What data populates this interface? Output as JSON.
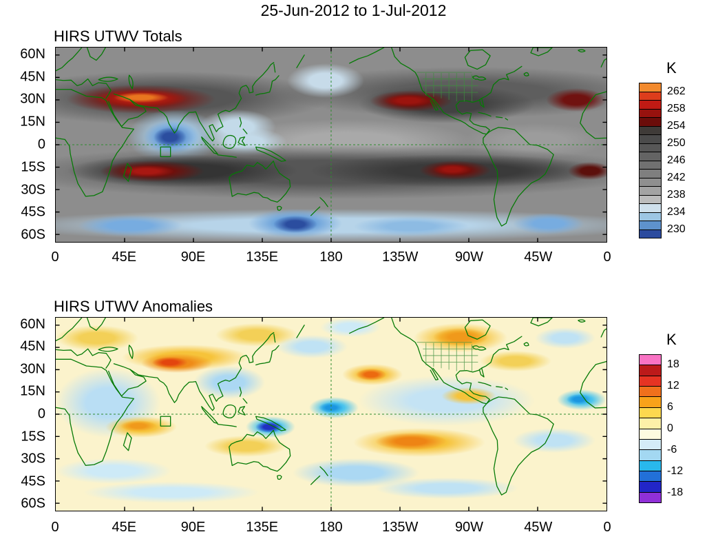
{
  "title": "25-Jun-2012 to 1-Jul-2012",
  "axes": {
    "lat_labels": [
      "60N",
      "45N",
      "30N",
      "15N",
      "0",
      "15S",
      "30S",
      "45S",
      "60S"
    ],
    "lon_labels": [
      "0",
      "45E",
      "90E",
      "135E",
      "180",
      "135W",
      "90W",
      "45W",
      "0"
    ]
  },
  "panels": [
    {
      "title": "HIRS UTWV Totals",
      "colorbar": {
        "unit": "K",
        "tick_labels": [
          "262",
          "258",
          "254",
          "250",
          "246",
          "242",
          "238",
          "234",
          "230"
        ],
        "colors": [
          "#f28a2e",
          "#dd3d1c",
          "#c01a14",
          "#97120e",
          "#6b0d0a",
          "#3f3b38",
          "#4b4b4b",
          "#575757",
          "#646464",
          "#717171",
          "#7f7f7f",
          "#8f8f8f",
          "#a3a3a3",
          "#bcbcbc",
          "#cfe0ec",
          "#9dc6e4",
          "#5e92cc",
          "#2c4b9e"
        ]
      }
    },
    {
      "title": "HIRS UTWV Anomalies",
      "colorbar": {
        "unit": "K",
        "tick_labels": [
          "18",
          "12",
          "6",
          "0",
          "-6",
          "-12",
          "-18"
        ],
        "colors": [
          "#f973c4",
          "#bc1a1a",
          "#e63323",
          "#f0701c",
          "#f9a21a",
          "#fcd84f",
          "#fdf0a8",
          "#fdfbe0",
          "#d4ecf7",
          "#a3d8f2",
          "#29b8ec",
          "#2270d8",
          "#2226c8",
          "#9030d8"
        ]
      }
    }
  ],
  "chart_data": [
    {
      "type": "heatmap",
      "title": "HIRS UTWV Totals",
      "period": "25-Jun-2012 to 1-Jul-2012",
      "units": "K",
      "x_ticks": [
        "0",
        "45E",
        "90E",
        "135E",
        "180",
        "135W",
        "90W",
        "45W",
        "0"
      ],
      "y_ticks": [
        "60N",
        "45N",
        "30N",
        "15N",
        "0",
        "15S",
        "30S",
        "45S",
        "60S"
      ],
      "scale_ticks_K": [
        262,
        258,
        254,
        250,
        246,
        242,
        238,
        234,
        230
      ],
      "contour_interval_K": 2,
      "legend_position": "right",
      "grid": "dashed reference lines at equator and 180; green coastlines and borders",
      "notable_features": [
        {
          "region": "North Africa / Arabia / NW India, 20-35N",
          "approx_value_K": "256-263 maximum (orange-red ridge)"
        },
        {
          "region": "Subtropical band 15S-35S across S Indian Ocean, Australia, S Pacific, S Atlantic",
          "approx_value_K": "250-258 dark band"
        },
        {
          "region": "S Indian Ocean near 20S, 50-75E",
          "approx_value_K": "256-260 (dark red core)"
        },
        {
          "region": "SE Pacific near 18S, 110-90W",
          "approx_value_K": "254-258 (dark red core)"
        },
        {
          "region": "NE subtropical Pacific near 25N, 140-110W and N Atlantic near 25N, 40-20W",
          "approx_value_K": "254-258"
        },
        {
          "region": "Equatorial Indian Ocean / Bay of Bengal, 5S-10N, 65-95E",
          "approx_value_K": "230-236 minimum (deep blue)"
        },
        {
          "region": "Maritime Continent / west Pacific warm pool",
          "approx_value_K": "236-242"
        },
        {
          "region": "Southern Ocean 45S-60S",
          "approx_value_K": "230-238 blue band with minima near 150E"
        },
        {
          "region": "Mid-latitude background",
          "approx_value_K": "242-250 (grays)"
        }
      ]
    },
    {
      "type": "heatmap",
      "title": "HIRS UTWV Anomalies",
      "period": "25-Jun-2012 to 1-Jul-2012",
      "units": "K",
      "x_ticks": [
        "0",
        "45E",
        "90E",
        "135E",
        "180",
        "135W",
        "90W",
        "45W",
        "0"
      ],
      "y_ticks": [
        "60N",
        "45N",
        "30N",
        "15N",
        "0",
        "15S",
        "30S",
        "45S",
        "60S"
      ],
      "scale_ticks_K": [
        18,
        12,
        6,
        0,
        -6,
        -12,
        -18
      ],
      "contour_interval_K": 3,
      "legend_position": "right",
      "grid": "dashed reference lines at equator and 180; green coastlines and borders",
      "notable_features": [
        {
          "region": "Tibetan Plateau / N India, 25-35N, 65-95E",
          "approx_value_K": "+9 to +15 (orange/red core)"
        },
        {
          "region": "Central N Pacific near 15-20N, 175-160W",
          "approx_value_K": "+9 to +12 (orange core)"
        },
        {
          "region": "United States (with state borders visible)",
          "approx_value_K": "+3 to +9 (yellow/orange)"
        },
        {
          "region": "SE Pacific 20-35S, 135-95W",
          "approx_value_K": "+6 to +12 (yellow band, orange core)"
        },
        {
          "region": "Madagascar / SW Indian Ocean",
          "approx_value_K": "+6 to +9"
        },
        {
          "region": "Coral Sea near 12S, 145-160E",
          "approx_value_K": "-12 to -18 (deep blue spot)"
        },
        {
          "region": "Equatorial central Pacific near 180",
          "approx_value_K": "-6 to -9 (cyan)"
        },
        {
          "region": "Eastern Atlantic at equator near 0-10W",
          "approx_value_K": "-6 to -9 (cyan)"
        },
        {
          "region": "Scattered oceanic patches (Africa, SE Asia, S Pacific)",
          "approx_value_K": "-3 to -6 (pale blue)"
        },
        {
          "region": "Background elsewhere",
          "approx_value_K": "-3 to +3 (cream / pale yellow)"
        }
      ]
    }
  ]
}
